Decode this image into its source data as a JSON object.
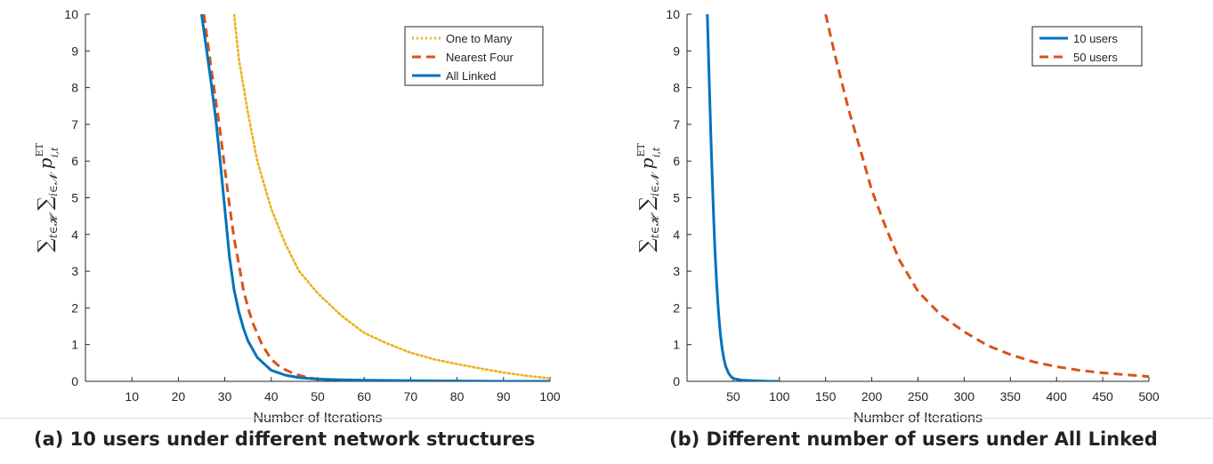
{
  "colors": {
    "blue": "#0072BD",
    "orange": "#D95319",
    "yellow": "#EDB120",
    "axis": "#262626"
  },
  "captions": {
    "a": "(a) 10 users under different network structures",
    "b": "(b) Different number of users under All Linked"
  },
  "chart_data": [
    {
      "type": "line",
      "xlabel": "Number of Iterations",
      "ylabel": "∑t∈H ∑i∈N p_{i,t}^ET",
      "ylabel_parts": {
        "sum1": "∑",
        "sub1": "t∈𝓗",
        "sum2": "∑",
        "sub2": "i∈𝓝",
        "p": "p",
        "sub3": "i,t",
        "sup": "ET"
      },
      "xlim": [
        0,
        100
      ],
      "ylim": [
        0,
        10
      ],
      "xticks": [
        10,
        20,
        30,
        40,
        50,
        60,
        70,
        80,
        90,
        100
      ],
      "yticks": [
        0,
        1,
        2,
        3,
        4,
        5,
        6,
        7,
        8,
        9,
        10
      ],
      "grid": false,
      "legend_position": "top-right",
      "series": [
        {
          "name": "One to Many",
          "style": "dotted",
          "color": "#EDB120",
          "x": [
            32,
            33,
            35,
            37,
            40,
            43,
            46,
            50,
            55,
            60,
            65,
            70,
            75,
            80,
            85,
            90,
            95,
            100
          ],
          "y": [
            10,
            8.8,
            7.3,
            6.0,
            4.7,
            3.75,
            3.0,
            2.4,
            1.8,
            1.32,
            1.03,
            0.78,
            0.6,
            0.47,
            0.35,
            0.24,
            0.15,
            0.08
          ]
        },
        {
          "name": "Nearest Four",
          "style": "dashed",
          "color": "#D95319",
          "x": [
            25.5,
            27,
            28,
            29,
            30,
            31,
            32,
            33,
            34,
            35,
            36,
            38,
            40,
            42,
            45,
            48,
            50,
            55,
            60,
            70,
            80,
            90,
            100
          ],
          "y": [
            10,
            8.6,
            7.7,
            6.8,
            5.8,
            4.8,
            3.9,
            3.2,
            2.5,
            2.0,
            1.6,
            1.0,
            0.6,
            0.38,
            0.2,
            0.1,
            0.06,
            0.03,
            0.02,
            0.01,
            0.0,
            0.0,
            0.0
          ]
        },
        {
          "name": "All Linked",
          "style": "solid",
          "color": "#0072BD",
          "x": [
            25,
            26,
            27,
            28,
            29,
            30,
            31,
            32,
            33,
            34,
            35,
            37,
            40,
            43,
            46,
            50,
            55,
            60,
            70,
            80,
            90,
            100
          ],
          "y": [
            10,
            9.1,
            8.2,
            7.2,
            6.0,
            4.7,
            3.4,
            2.5,
            1.9,
            1.45,
            1.1,
            0.65,
            0.3,
            0.17,
            0.1,
            0.06,
            0.04,
            0.03,
            0.02,
            0.01,
            0.0,
            0.0
          ]
        }
      ]
    },
    {
      "type": "line",
      "xlabel": "Number of Iterations",
      "ylabel": "∑t∈H ∑i∈N p_{i,t}^ET",
      "ylabel_parts": {
        "sum1": "∑",
        "sub1": "t∈𝓗",
        "sum2": "∑",
        "sub2": "i∈𝓝",
        "p": "p",
        "sub3": "i,t",
        "sup": "ET"
      },
      "xlim": [
        0,
        500
      ],
      "ylim": [
        0,
        10
      ],
      "xticks": [
        50,
        100,
        150,
        200,
        250,
        300,
        350,
        400,
        450,
        500
      ],
      "yticks": [
        0,
        1,
        2,
        3,
        4,
        5,
        6,
        7,
        8,
        9,
        10
      ],
      "grid": false,
      "legend_position": "top-right",
      "series": [
        {
          "name": "10 users",
          "style": "solid",
          "color": "#0072BD",
          "x": [
            22,
            24,
            26,
            28,
            30,
            32,
            34,
            36,
            38,
            40,
            42,
            45,
            48,
            50,
            55,
            60,
            70,
            80,
            90,
            100
          ],
          "y": [
            10,
            8.2,
            6.5,
            5.0,
            3.7,
            2.7,
            1.9,
            1.3,
            0.9,
            0.6,
            0.4,
            0.22,
            0.12,
            0.08,
            0.05,
            0.03,
            0.02,
            0.01,
            0.0,
            0.0
          ]
        },
        {
          "name": "50 users",
          "style": "dashed",
          "color": "#D95319",
          "x": [
            150,
            160,
            175,
            190,
            200,
            215,
            230,
            250,
            275,
            300,
            325,
            350,
            375,
            400,
            425,
            450,
            475,
            500
          ],
          "y": [
            10,
            8.9,
            7.4,
            6.1,
            5.2,
            4.2,
            3.3,
            2.45,
            1.8,
            1.35,
            0.98,
            0.73,
            0.53,
            0.4,
            0.3,
            0.23,
            0.18,
            0.13
          ]
        }
      ]
    }
  ]
}
